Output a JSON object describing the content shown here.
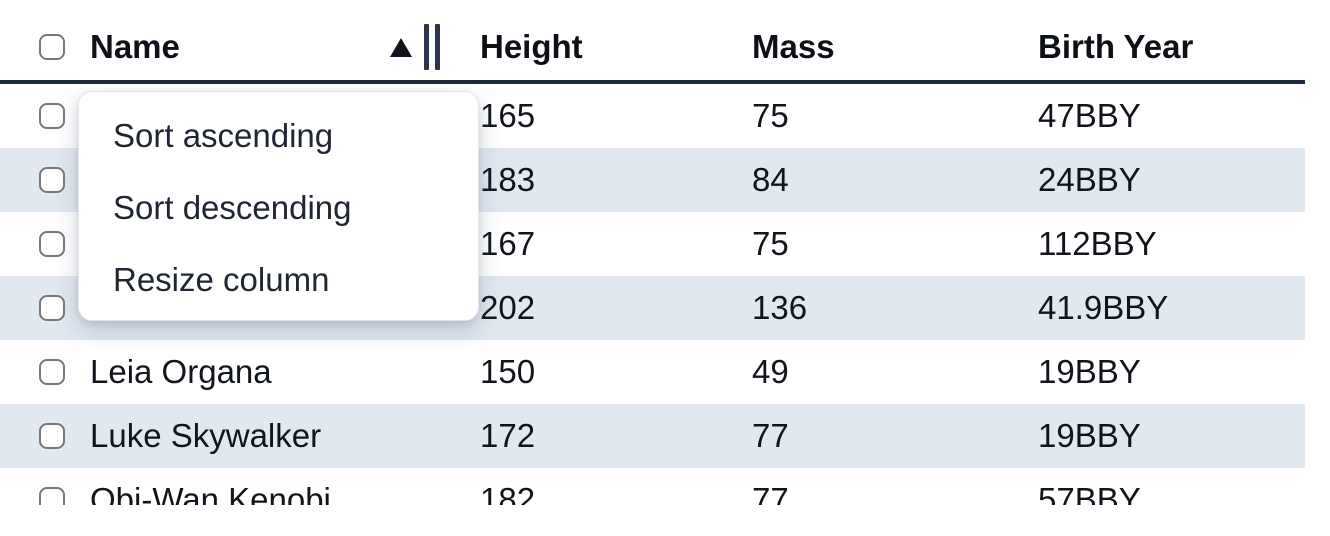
{
  "colors": {
    "header_border": "#1e293b",
    "row_stripe": "#e2e8f0",
    "text": "#10141c",
    "menu_text": "#1f2533",
    "checkbox_border": "#74787f",
    "resize_handle": "#2b3648",
    "menu_background": "#ffffff"
  },
  "header": {
    "columns": [
      {
        "id": "name",
        "label": "Name",
        "sort": "ascending"
      },
      {
        "id": "height",
        "label": "Height"
      },
      {
        "id": "mass",
        "label": "Mass"
      },
      {
        "id": "birth_year",
        "label": "Birth Year"
      }
    ]
  },
  "menu": {
    "items": [
      {
        "label": "Sort ascending"
      },
      {
        "label": "Sort descending"
      },
      {
        "label": "Resize column"
      }
    ]
  },
  "rows": [
    {
      "name": "",
      "height": "165",
      "mass": "75",
      "birth_year": "47BBY"
    },
    {
      "name": "",
      "height": "183",
      "mass": "84",
      "birth_year": "24BBY"
    },
    {
      "name": "",
      "height": "167",
      "mass": "75",
      "birth_year": "112BBY"
    },
    {
      "name": "",
      "height": "202",
      "mass": "136",
      "birth_year": "41.9BBY"
    },
    {
      "name": "Leia Organa",
      "height": "150",
      "mass": "49",
      "birth_year": "19BBY"
    },
    {
      "name": "Luke Skywalker",
      "height": "172",
      "mass": "77",
      "birth_year": "19BBY"
    },
    {
      "name": "Obi-Wan Kenobi",
      "height": "182",
      "mass": "77",
      "birth_year": "57BBY"
    }
  ]
}
